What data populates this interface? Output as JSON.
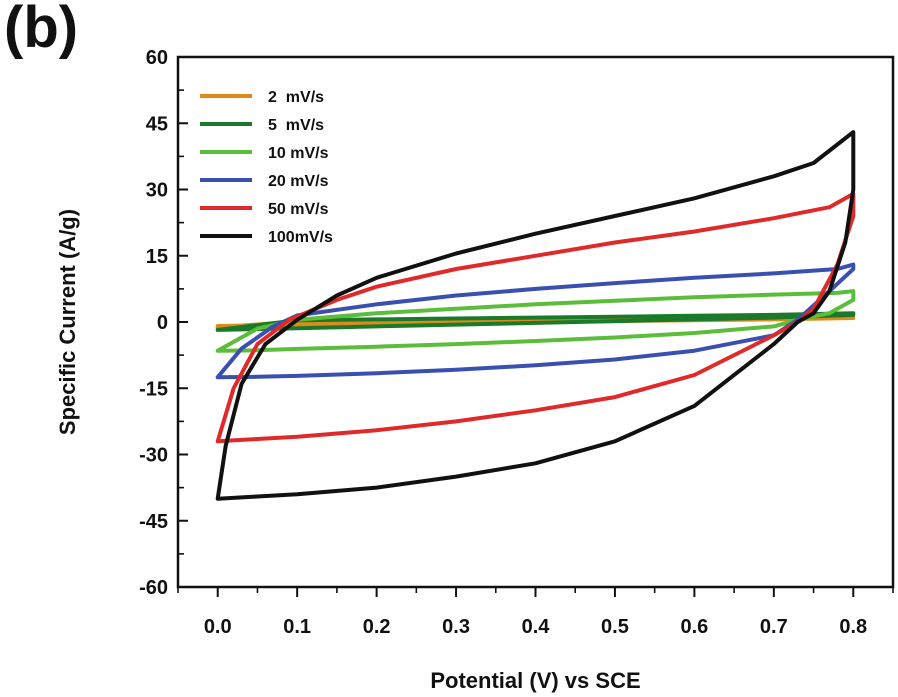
{
  "panel_label": "(b)",
  "chart_data": {
    "type": "line",
    "xlabel": "Potential (V) vs SCE",
    "ylabel": "Specific Current (A/g)",
    "xlim": [
      -0.05,
      0.85
    ],
    "ylim": [
      -60,
      60
    ],
    "x_ticks": [
      "0.0",
      "0.1",
      "0.2",
      "0.3",
      "0.4",
      "0.5",
      "0.6",
      "0.7",
      "0.8"
    ],
    "y_ticks": [
      "60",
      "45",
      "30",
      "15",
      "0",
      "-15",
      "-30",
      "-45",
      "-60"
    ],
    "legend_position": "top-left",
    "series": [
      {
        "name": "2  mV/s",
        "color": "#e08a1e",
        "x": [
          0.0,
          0.1,
          0.2,
          0.3,
          0.4,
          0.5,
          0.6,
          0.7,
          0.8,
          0.8,
          0.7,
          0.6,
          0.5,
          0.4,
          0.3,
          0.2,
          0.1,
          0.0,
          0.0
        ],
        "y": [
          -1.2,
          0.1,
          0.2,
          0.3,
          0.4,
          0.5,
          0.6,
          0.7,
          1.0,
          0.9,
          0.6,
          0.4,
          0.2,
          0.0,
          -0.2,
          -0.4,
          -0.6,
          -0.9,
          -1.2
        ]
      },
      {
        "name": "5  mV/s",
        "color": "#1a7a2a",
        "x": [
          0.0,
          0.1,
          0.2,
          0.3,
          0.4,
          0.5,
          0.6,
          0.7,
          0.8,
          0.8,
          0.7,
          0.6,
          0.5,
          0.4,
          0.3,
          0.2,
          0.1,
          0.0,
          0.0
        ],
        "y": [
          -1.8,
          0.4,
          0.6,
          0.8,
          1.0,
          1.2,
          1.4,
          1.6,
          2.0,
          1.6,
          1.0,
          0.6,
          0.2,
          -0.2,
          -0.6,
          -1.0,
          -1.4,
          -1.8,
          -1.8
        ]
      },
      {
        "name": "10 mV/s",
        "color": "#5cbd3a",
        "x": [
          0.0,
          0.05,
          0.1,
          0.2,
          0.3,
          0.4,
          0.5,
          0.6,
          0.7,
          0.78,
          0.8,
          0.8,
          0.77,
          0.73,
          0.7,
          0.6,
          0.5,
          0.4,
          0.3,
          0.2,
          0.1,
          0.05,
          0.0,
          0.0
        ],
        "y": [
          -6.5,
          -1.5,
          0.5,
          2.0,
          3.0,
          4.0,
          4.8,
          5.6,
          6.2,
          6.6,
          7.0,
          5.0,
          2.0,
          0.5,
          -1.0,
          -2.5,
          -3.5,
          -4.3,
          -5.0,
          -5.6,
          -6.1,
          -6.4,
          -6.5,
          -6.5
        ]
      },
      {
        "name": "20 mV/s",
        "color": "#3a50b0",
        "x": [
          0.0,
          0.03,
          0.07,
          0.1,
          0.2,
          0.3,
          0.4,
          0.5,
          0.6,
          0.7,
          0.78,
          0.8,
          0.8,
          0.77,
          0.73,
          0.7,
          0.6,
          0.5,
          0.4,
          0.3,
          0.2,
          0.1,
          0.05,
          0.0,
          0.0
        ],
        "y": [
          -12.5,
          -6.0,
          -1.0,
          1.5,
          4.0,
          6.0,
          7.5,
          8.8,
          10.0,
          11.0,
          12.0,
          13.0,
          12.0,
          7.0,
          0.5,
          -3.0,
          -6.5,
          -8.5,
          -9.8,
          -10.8,
          -11.6,
          -12.2,
          -12.4,
          -12.5,
          -12.5
        ]
      },
      {
        "name": "50 mV/s",
        "color": "#e02a2a",
        "x": [
          0.0,
          0.02,
          0.05,
          0.09,
          0.15,
          0.2,
          0.3,
          0.4,
          0.5,
          0.6,
          0.7,
          0.77,
          0.8,
          0.8,
          0.78,
          0.75,
          0.73,
          0.7,
          0.6,
          0.5,
          0.4,
          0.3,
          0.2,
          0.1,
          0.05,
          0.0,
          0.0
        ],
        "y": [
          -27,
          -15,
          -5,
          0.5,
          5,
          8,
          12,
          15,
          18,
          20.5,
          23.5,
          26,
          29,
          24,
          13,
          3,
          0,
          -3,
          -12,
          -17,
          -20,
          -22.5,
          -24.5,
          -26,
          -26.5,
          -27,
          -27
        ]
      },
      {
        "name": "100mV/s",
        "color": "#111111",
        "x": [
          0.0,
          0.01,
          0.03,
          0.06,
          0.1,
          0.15,
          0.2,
          0.3,
          0.4,
          0.5,
          0.6,
          0.7,
          0.75,
          0.8,
          0.8,
          0.79,
          0.77,
          0.75,
          0.73,
          0.7,
          0.6,
          0.5,
          0.4,
          0.3,
          0.2,
          0.1,
          0.05,
          0.0,
          0.0
        ],
        "y": [
          -40,
          -28,
          -14,
          -5,
          0.5,
          6,
          10,
          15.5,
          20,
          24,
          28,
          33,
          36,
          43,
          30,
          18,
          7,
          2,
          0,
          -5,
          -19,
          -27,
          -32,
          -35,
          -37.5,
          -39,
          -39.5,
          -40,
          -40
        ]
      }
    ]
  }
}
